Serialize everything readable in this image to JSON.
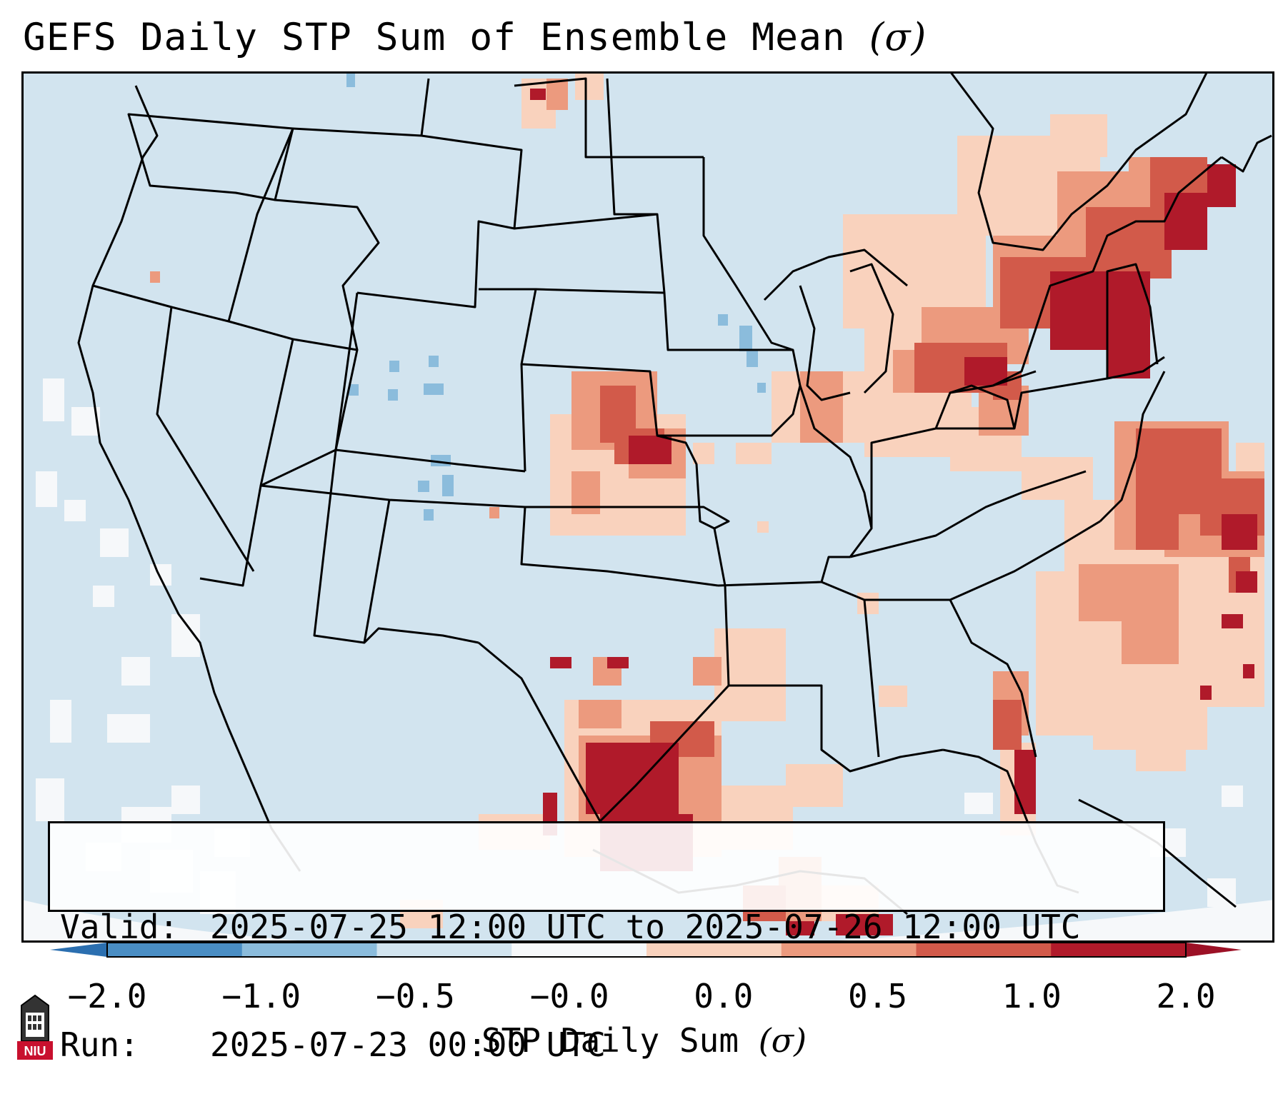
{
  "title": "GEFS Daily STP Sum of Ensemble Mean",
  "title_symbol": "(σ)",
  "info": {
    "valid_label": "Valid:",
    "valid_value": "2025-07-25 12:00 UTC to 2025-07-26 12:00 UTC",
    "run_label": "Run:",
    "run_value": "2025-07-23 00:00 UTC"
  },
  "colorbar": {
    "title": "STP Daily Sum",
    "title_symbol": "(σ)",
    "ticks": [
      "−2.0",
      "−1.0",
      "−0.5",
      "−0.0",
      "0.0",
      "0.5",
      "1.0",
      "2.0"
    ],
    "colors": [
      "#4a8ec4",
      "#8bbcdc",
      "#d2e4ef",
      "#f6f8fa",
      "#f9d2bd",
      "#ec9a7e",
      "#d25a4a",
      "#b01a2a"
    ],
    "extend_low_color": "#2b6fb0",
    "extend_high_color": "#9c1126"
  },
  "map_colors": {
    "background": "#d2e4ef",
    "border": "#000000"
  },
  "logo_text": "NIU"
}
